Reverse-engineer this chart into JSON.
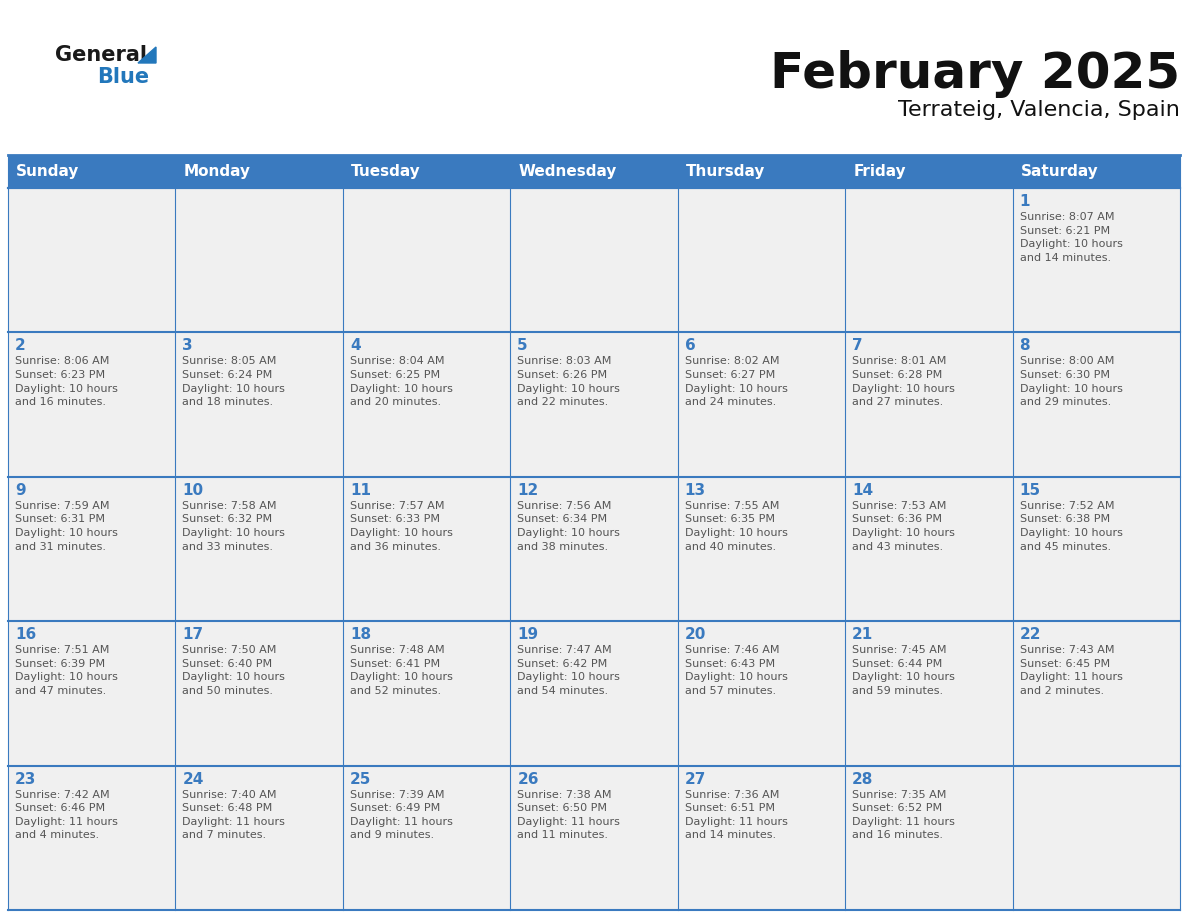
{
  "title": "February 2025",
  "subtitle": "Terrateig, Valencia, Spain",
  "header_bg": "#3a7abf",
  "header_text_color": "#ffffff",
  "cell_bg": "#f0f0f0",
  "cell_bg_white": "#ffffff",
  "day_number_color": "#3a7abf",
  "cell_text_color": "#555555",
  "grid_line_color": "#3a7abf",
  "days_of_week": [
    "Sunday",
    "Monday",
    "Tuesday",
    "Wednesday",
    "Thursday",
    "Friday",
    "Saturday"
  ],
  "weeks": [
    [
      {
        "day": null,
        "info": null
      },
      {
        "day": null,
        "info": null
      },
      {
        "day": null,
        "info": null
      },
      {
        "day": null,
        "info": null
      },
      {
        "day": null,
        "info": null
      },
      {
        "day": null,
        "info": null
      },
      {
        "day": 1,
        "info": "Sunrise: 8:07 AM\nSunset: 6:21 PM\nDaylight: 10 hours\nand 14 minutes."
      }
    ],
    [
      {
        "day": 2,
        "info": "Sunrise: 8:06 AM\nSunset: 6:23 PM\nDaylight: 10 hours\nand 16 minutes."
      },
      {
        "day": 3,
        "info": "Sunrise: 8:05 AM\nSunset: 6:24 PM\nDaylight: 10 hours\nand 18 minutes."
      },
      {
        "day": 4,
        "info": "Sunrise: 8:04 AM\nSunset: 6:25 PM\nDaylight: 10 hours\nand 20 minutes."
      },
      {
        "day": 5,
        "info": "Sunrise: 8:03 AM\nSunset: 6:26 PM\nDaylight: 10 hours\nand 22 minutes."
      },
      {
        "day": 6,
        "info": "Sunrise: 8:02 AM\nSunset: 6:27 PM\nDaylight: 10 hours\nand 24 minutes."
      },
      {
        "day": 7,
        "info": "Sunrise: 8:01 AM\nSunset: 6:28 PM\nDaylight: 10 hours\nand 27 minutes."
      },
      {
        "day": 8,
        "info": "Sunrise: 8:00 AM\nSunset: 6:30 PM\nDaylight: 10 hours\nand 29 minutes."
      }
    ],
    [
      {
        "day": 9,
        "info": "Sunrise: 7:59 AM\nSunset: 6:31 PM\nDaylight: 10 hours\nand 31 minutes."
      },
      {
        "day": 10,
        "info": "Sunrise: 7:58 AM\nSunset: 6:32 PM\nDaylight: 10 hours\nand 33 minutes."
      },
      {
        "day": 11,
        "info": "Sunrise: 7:57 AM\nSunset: 6:33 PM\nDaylight: 10 hours\nand 36 minutes."
      },
      {
        "day": 12,
        "info": "Sunrise: 7:56 AM\nSunset: 6:34 PM\nDaylight: 10 hours\nand 38 minutes."
      },
      {
        "day": 13,
        "info": "Sunrise: 7:55 AM\nSunset: 6:35 PM\nDaylight: 10 hours\nand 40 minutes."
      },
      {
        "day": 14,
        "info": "Sunrise: 7:53 AM\nSunset: 6:36 PM\nDaylight: 10 hours\nand 43 minutes."
      },
      {
        "day": 15,
        "info": "Sunrise: 7:52 AM\nSunset: 6:38 PM\nDaylight: 10 hours\nand 45 minutes."
      }
    ],
    [
      {
        "day": 16,
        "info": "Sunrise: 7:51 AM\nSunset: 6:39 PM\nDaylight: 10 hours\nand 47 minutes."
      },
      {
        "day": 17,
        "info": "Sunrise: 7:50 AM\nSunset: 6:40 PM\nDaylight: 10 hours\nand 50 minutes."
      },
      {
        "day": 18,
        "info": "Sunrise: 7:48 AM\nSunset: 6:41 PM\nDaylight: 10 hours\nand 52 minutes."
      },
      {
        "day": 19,
        "info": "Sunrise: 7:47 AM\nSunset: 6:42 PM\nDaylight: 10 hours\nand 54 minutes."
      },
      {
        "day": 20,
        "info": "Sunrise: 7:46 AM\nSunset: 6:43 PM\nDaylight: 10 hours\nand 57 minutes."
      },
      {
        "day": 21,
        "info": "Sunrise: 7:45 AM\nSunset: 6:44 PM\nDaylight: 10 hours\nand 59 minutes."
      },
      {
        "day": 22,
        "info": "Sunrise: 7:43 AM\nSunset: 6:45 PM\nDaylight: 11 hours\nand 2 minutes."
      }
    ],
    [
      {
        "day": 23,
        "info": "Sunrise: 7:42 AM\nSunset: 6:46 PM\nDaylight: 11 hours\nand 4 minutes."
      },
      {
        "day": 24,
        "info": "Sunrise: 7:40 AM\nSunset: 6:48 PM\nDaylight: 11 hours\nand 7 minutes."
      },
      {
        "day": 25,
        "info": "Sunrise: 7:39 AM\nSunset: 6:49 PM\nDaylight: 11 hours\nand 9 minutes."
      },
      {
        "day": 26,
        "info": "Sunrise: 7:38 AM\nSunset: 6:50 PM\nDaylight: 11 hours\nand 11 minutes."
      },
      {
        "day": 27,
        "info": "Sunrise: 7:36 AM\nSunset: 6:51 PM\nDaylight: 11 hours\nand 14 minutes."
      },
      {
        "day": 28,
        "info": "Sunrise: 7:35 AM\nSunset: 6:52 PM\nDaylight: 11 hours\nand 16 minutes."
      },
      {
        "day": null,
        "info": null
      }
    ]
  ],
  "logo_general_color": "#1a1a1a",
  "logo_blue_color": "#2277bb",
  "logo_triangle_color": "#2277bb",
  "title_fontsize": 36,
  "subtitle_fontsize": 16,
  "dow_fontsize": 11,
  "day_num_fontsize": 11,
  "cell_text_fontsize": 8
}
